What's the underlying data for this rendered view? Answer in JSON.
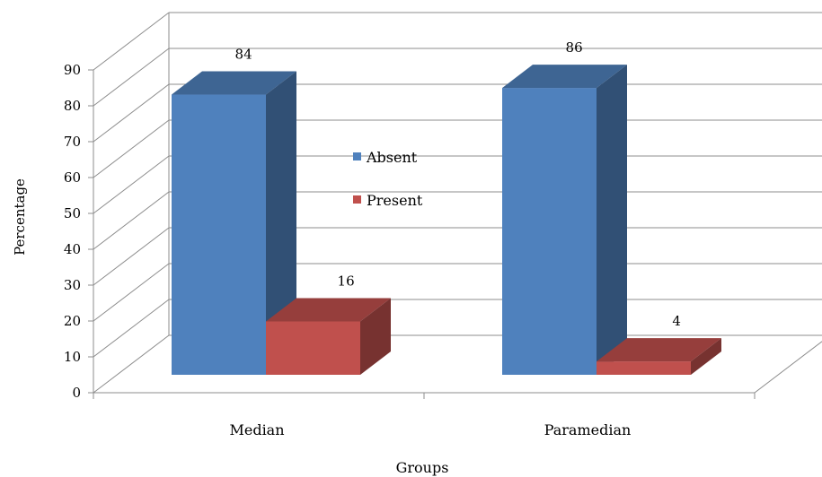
{
  "chart_data": {
    "type": "bar",
    "style": "3d-clustered-column",
    "xlabel": "Groups",
    "ylabel": "Percentage",
    "ylim": [
      0,
      90
    ],
    "y_ticks": [
      0,
      10,
      20,
      30,
      40,
      50,
      60,
      70,
      80,
      90
    ],
    "grid": true,
    "categories": [
      "Median",
      "Paramedian"
    ],
    "series": [
      {
        "name": "Absent",
        "values": [
          84,
          86
        ],
        "color": "#4F81BD"
      },
      {
        "name": "Present",
        "values": [
          16,
          4
        ],
        "color": "#C0504D"
      }
    ],
    "data_labels": true,
    "legend_position": "center"
  }
}
